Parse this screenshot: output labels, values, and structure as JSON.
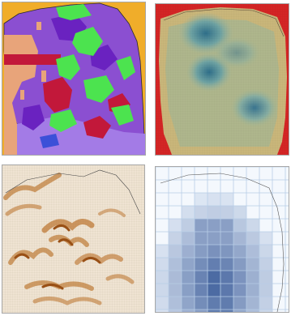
{
  "panels": [
    {
      "id": "categorical-land-use",
      "colors": {
        "background": "#f0ad2a",
        "purple": "#8b4fd1",
        "lavender": "#a37be6",
        "violet": "#6a22c0",
        "green": "#4ce34f",
        "peach": "#e8a47a",
        "crimson": "#c2183a",
        "blue": "#3c50d8"
      }
    },
    {
      "id": "density-heatmap",
      "colors": {
        "edge": "#d42525",
        "low": "#c9b67a",
        "mid": "#9bb59e",
        "high": "#2f6f8a"
      }
    },
    {
      "id": "gradient-texture",
      "colors": {
        "light": "#efe3d2",
        "dark": "#b5651d"
      }
    },
    {
      "id": "grid-choropleth",
      "colors": {
        "light": "#e6eef8",
        "mid": "#8fb3dc",
        "dark": "#3f5f9c"
      }
    }
  ]
}
